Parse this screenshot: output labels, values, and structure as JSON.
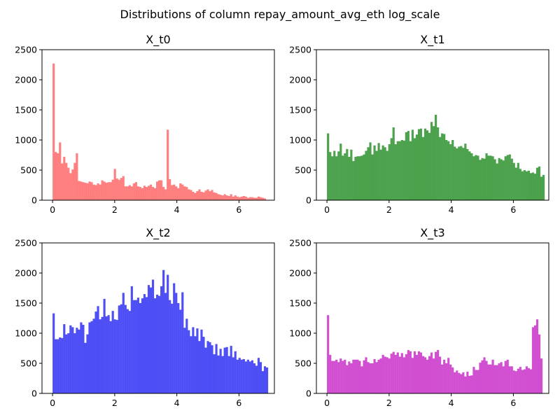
{
  "figure": {
    "title": "Distributions of column repay_amount_avg_eth log_scale"
  },
  "chart_data": [
    {
      "type": "bar",
      "title": "X_t0",
      "color": "#ff4a4a",
      "xlim": [
        -0.34,
        7.14
      ],
      "ylim": [
        0,
        2500
      ],
      "xticks": [
        "0",
        "2",
        "4",
        "6"
      ],
      "yticks": [
        "0",
        "500",
        "1000",
        "1500",
        "2000",
        "2500"
      ],
      "bin_start": 0.0,
      "bin_width": 0.068,
      "values": [
        2270,
        800,
        780,
        960,
        610,
        720,
        620,
        540,
        450,
        510,
        620,
        780,
        320,
        310,
        300,
        290,
        280,
        310,
        300,
        260,
        250,
        280,
        260,
        330,
        310,
        290,
        300,
        300,
        340,
        520,
        360,
        340,
        370,
        400,
        230,
        230,
        250,
        230,
        280,
        300,
        230,
        220,
        200,
        240,
        220,
        240,
        260,
        220,
        200,
        310,
        330,
        330,
        220,
        180,
        1170,
        350,
        250,
        260,
        230,
        200,
        280,
        260,
        230,
        220,
        180,
        170,
        140,
        120,
        150,
        180,
        140,
        130,
        160,
        180,
        150,
        170,
        130,
        120,
        100,
        90,
        80,
        100,
        80,
        70,
        100,
        60,
        80,
        60,
        50,
        60,
        70,
        60,
        40,
        50,
        50,
        40,
        40,
        60,
        50,
        40,
        30
      ],
      "opacity": 0.7
    },
    {
      "type": "bar",
      "title": "X_t1",
      "color": "#2e922e",
      "xlim": [
        -0.34,
        7.14
      ],
      "ylim": [
        0,
        2500
      ],
      "xticks": [
        "0",
        "2",
        "4",
        "6"
      ],
      "yticks": [
        "0",
        "500",
        "1000",
        "1500",
        "2000",
        "2500"
      ],
      "bin_start": 0.0,
      "bin_width": 0.068,
      "values": [
        1110,
        800,
        730,
        820,
        730,
        810,
        940,
        740,
        780,
        850,
        720,
        840,
        650,
        720,
        730,
        730,
        740,
        760,
        820,
        880,
        960,
        760,
        910,
        820,
        950,
        840,
        910,
        880,
        820,
        930,
        1030,
        1210,
        930,
        980,
        980,
        1000,
        990,
        1130,
        1150,
        980,
        1170,
        1030,
        1090,
        1180,
        1190,
        1050,
        1190,
        1160,
        1120,
        1300,
        1230,
        1420,
        1210,
        1050,
        1110,
        1100,
        1000,
        980,
        930,
        1000,
        890,
        860,
        890,
        900,
        870,
        940,
        850,
        810,
        780,
        730,
        750,
        740,
        670,
        700,
        690,
        780,
        740,
        740,
        730,
        680,
        610,
        700,
        680,
        660,
        730,
        750,
        760,
        690,
        620,
        540,
        620,
        520,
        480,
        500,
        480,
        490,
        450,
        460,
        440,
        540,
        560,
        390,
        420
      ],
      "opacity": 0.85
    },
    {
      "type": "bar",
      "title": "X_t2",
      "color": "#3c3cf5",
      "xlim": [
        -0.34,
        7.14
      ],
      "ylim": [
        0,
        2500
      ],
      "xticks": [
        "0",
        "2",
        "4",
        "6"
      ],
      "yticks": [
        "0",
        "500",
        "1000",
        "1500",
        "2000",
        "2500"
      ],
      "bin_start": 0.0,
      "bin_width": 0.068,
      "values": [
        1330,
        900,
        900,
        930,
        920,
        1150,
        980,
        1000,
        1130,
        1100,
        1000,
        1090,
        1060,
        1180,
        1140,
        840,
        980,
        1180,
        1200,
        1240,
        1360,
        1450,
        1230,
        1270,
        1570,
        1280,
        1300,
        1200,
        1370,
        1230,
        1220,
        1460,
        1480,
        1670,
        1470,
        1400,
        1370,
        1780,
        1550,
        1550,
        1590,
        1500,
        1580,
        1650,
        1600,
        1800,
        1760,
        1890,
        1580,
        1640,
        1620,
        1780,
        2050,
        1670,
        1970,
        1550,
        1490,
        1830,
        1670,
        1500,
        1390,
        1680,
        1090,
        1240,
        1050,
        950,
        1100,
        950,
        1080,
        870,
        1060,
        940,
        760,
        870,
        850,
        800,
        650,
        820,
        630,
        740,
        620,
        760,
        770,
        620,
        790,
        600,
        700,
        560,
        590,
        560,
        570,
        530,
        560,
        530,
        550,
        500,
        460,
        590,
        520,
        370,
        450,
        430
      ],
      "opacity": 0.9
    },
    {
      "type": "bar",
      "title": "X_t3",
      "color": "#cc3ccc",
      "xlim": [
        -0.34,
        7.14
      ],
      "ylim": [
        0,
        2500
      ],
      "xticks": [
        "0",
        "2",
        "4",
        "6"
      ],
      "yticks": [
        "0",
        "500",
        "1000",
        "1500",
        "2000",
        "2500"
      ],
      "bin_start": 0.0,
      "bin_width": 0.068,
      "values": [
        1300,
        640,
        540,
        540,
        560,
        520,
        580,
        540,
        560,
        470,
        530,
        500,
        560,
        560,
        560,
        540,
        450,
        550,
        600,
        520,
        500,
        500,
        570,
        520,
        560,
        580,
        640,
        610,
        600,
        580,
        660,
        690,
        640,
        680,
        610,
        670,
        600,
        650,
        720,
        700,
        590,
        700,
        640,
        700,
        680,
        620,
        600,
        560,
        620,
        680,
        580,
        690,
        720,
        610,
        480,
        560,
        500,
        590,
        480,
        430,
        350,
        380,
        340,
        320,
        350,
        280,
        360,
        290,
        300,
        440,
        390,
        390,
        510,
        550,
        600,
        540,
        480,
        480,
        560,
        470,
        470,
        500,
        520,
        450,
        540,
        560,
        450,
        450,
        380,
        370,
        410,
        440,
        390,
        400,
        450,
        420,
        400,
        1100,
        1130,
        1230,
        980,
        580
      ],
      "opacity": 0.9
    }
  ]
}
